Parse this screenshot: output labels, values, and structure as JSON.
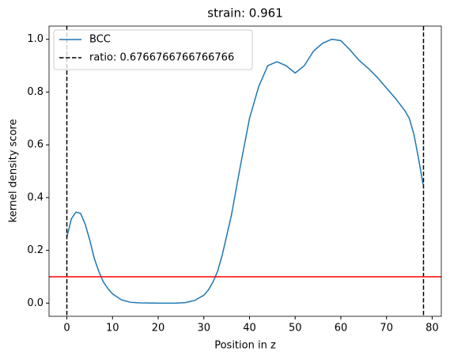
{
  "chart_data": {
    "type": "line",
    "title": "strain: 0.961",
    "xlabel": "Position in z",
    "ylabel": "kernel density score",
    "x": [
      0,
      1,
      2,
      3,
      4,
      5,
      6,
      7,
      8,
      9,
      10,
      12,
      14,
      16,
      20,
      24,
      26,
      28,
      30,
      31,
      32,
      33,
      34,
      36,
      38,
      40,
      42,
      44,
      46,
      48,
      50,
      52,
      54,
      56,
      58,
      60,
      62,
      64,
      66,
      68,
      70,
      72,
      74,
      75,
      76,
      77,
      78
    ],
    "series": [
      {
        "name": "BCC",
        "color": "#1f77b4",
        "values": [
          0.25,
          0.32,
          0.345,
          0.34,
          0.3,
          0.24,
          0.17,
          0.12,
          0.08,
          0.055,
          0.035,
          0.012,
          0.003,
          0.001,
          0,
          0,
          0.002,
          0.01,
          0.03,
          0.05,
          0.08,
          0.12,
          0.18,
          0.33,
          0.52,
          0.7,
          0.82,
          0.9,
          0.915,
          0.9,
          0.872,
          0.9,
          0.955,
          0.985,
          1.0,
          0.995,
          0.96,
          0.92,
          0.89,
          0.855,
          0.815,
          0.775,
          0.73,
          0.7,
          0.64,
          0.55,
          0.45
        ]
      }
    ],
    "vlines": {
      "label": "ratio: 0.6766766766766766",
      "color": "#000000",
      "values": [
        0,
        78.1
      ]
    },
    "hline": {
      "value": 0.1,
      "color": "#ff0000"
    },
    "xlim": [
      -3.9,
      82
    ],
    "ylim": [
      -0.05,
      1.05
    ],
    "xticks": [
      0,
      10,
      20,
      30,
      40,
      50,
      60,
      70,
      80
    ],
    "yticks": [
      {
        "value": 0,
        "label": "0.0"
      },
      0.2,
      0.4,
      0.6,
      0.8,
      {
        "value": 1,
        "label": "1.0"
      }
    ],
    "legend": "upper left"
  }
}
